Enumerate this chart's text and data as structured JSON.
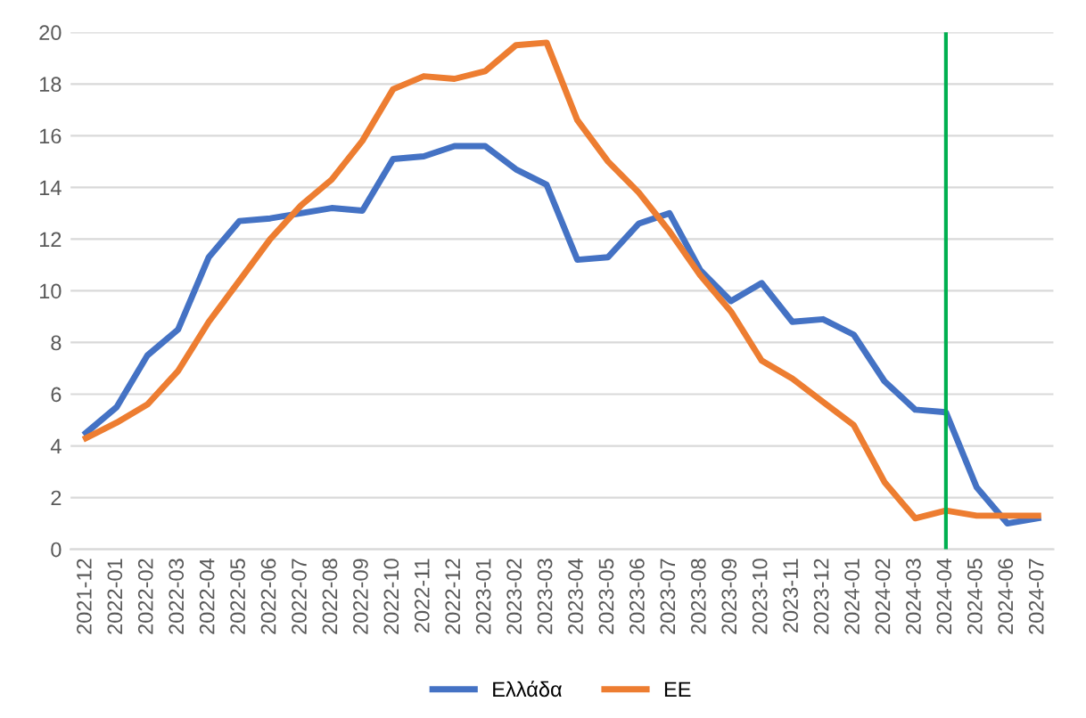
{
  "chart_data": {
    "type": "line",
    "categories": [
      "2021-12",
      "2022-01",
      "2022-02",
      "2022-03",
      "2022-04",
      "2022-05",
      "2022-06",
      "2022-07",
      "2022-08",
      "2022-09",
      "2022-10",
      "2022-11",
      "2022-12",
      "2023-01",
      "2023-02",
      "2023-03",
      "2023-04",
      "2023-05",
      "2023-06",
      "2023-07",
      "2023-08",
      "2023-09",
      "2023-10",
      "2023-11",
      "2023-12",
      "2024-01",
      "2024-02",
      "2024-03",
      "2024-04",
      "2024-05",
      "2024-06",
      "2024-07"
    ],
    "series": [
      {
        "name": "Ελλάδα",
        "color": "#4472c4",
        "values": [
          4.5,
          5.5,
          7.5,
          8.5,
          11.3,
          12.7,
          12.8,
          13.0,
          13.2,
          13.1,
          15.1,
          15.2,
          15.6,
          15.6,
          14.7,
          14.1,
          11.2,
          11.3,
          12.6,
          13.0,
          10.8,
          9.6,
          10.3,
          8.8,
          8.9,
          8.3,
          6.5,
          5.4,
          5.3,
          2.4,
          1.0,
          1.2
        ]
      },
      {
        "name": "ΕΕ",
        "color": "#ed7d31",
        "values": [
          4.3,
          4.9,
          5.6,
          6.9,
          8.8,
          10.4,
          12.0,
          13.3,
          14.3,
          15.8,
          17.8,
          18.3,
          18.2,
          18.5,
          19.5,
          19.6,
          16.6,
          15.0,
          13.8,
          12.3,
          10.6,
          9.2,
          7.3,
          6.6,
          5.7,
          4.8,
          2.6,
          1.2,
          1.5,
          1.3,
          1.3,
          1.3
        ]
      }
    ],
    "ylim": [
      0,
      20
    ],
    "yticks": [
      0,
      2,
      4,
      6,
      8,
      10,
      12,
      14,
      16,
      18,
      20
    ],
    "grid": "y",
    "legend": "bottom",
    "marker": "none",
    "line_style": "solid",
    "ref_lines": [
      {
        "axis": "x",
        "value": "2024-04",
        "color": "#00b050"
      }
    ]
  }
}
